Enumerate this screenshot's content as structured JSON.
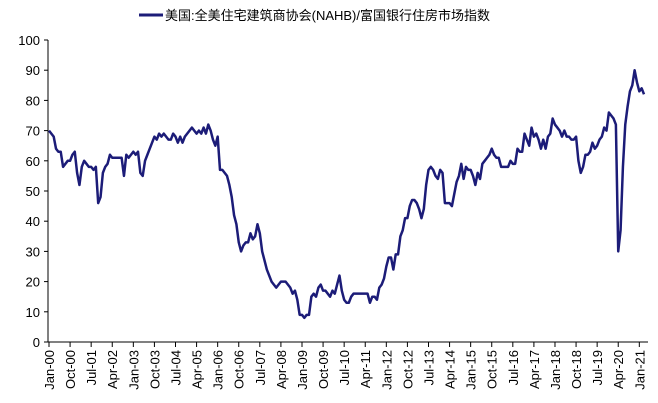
{
  "chart_data": {
    "type": "line",
    "categories": [
      "Jan-00",
      null,
      null,
      null,
      null,
      null,
      null,
      null,
      null,
      "Oct-00",
      null,
      null,
      null,
      null,
      null,
      null,
      null,
      null,
      "Jul-01",
      null,
      null,
      null,
      null,
      null,
      null,
      null,
      null,
      "Apr-02",
      null,
      null,
      null,
      null,
      null,
      null,
      null,
      null,
      "Jan-03",
      null,
      null,
      null,
      null,
      null,
      null,
      null,
      null,
      "Oct-03",
      null,
      null,
      null,
      null,
      null,
      null,
      null,
      null,
      "Jul-04",
      null,
      null,
      null,
      null,
      null,
      null,
      null,
      null,
      "Apr-05",
      null,
      null,
      null,
      null,
      null,
      null,
      null,
      null,
      "Jan-06",
      null,
      null,
      null,
      null,
      null,
      null,
      null,
      null,
      "Oct-06",
      null,
      null,
      null,
      null,
      null,
      null,
      null,
      null,
      "Jul-07",
      null,
      null,
      null,
      null,
      null,
      null,
      null,
      null,
      "Apr-08",
      null,
      null,
      null,
      null,
      null,
      null,
      null,
      null,
      "Jan-09",
      null,
      null,
      null,
      null,
      null,
      null,
      null,
      null,
      "Oct-09",
      null,
      null,
      null,
      null,
      null,
      null,
      null,
      null,
      "Jul-10",
      null,
      null,
      null,
      null,
      null,
      null,
      null,
      null,
      "Apr-11",
      null,
      null,
      null,
      null,
      null,
      null,
      null,
      null,
      "Jan-12",
      null,
      null,
      null,
      null,
      null,
      null,
      null,
      null,
      "Oct-12",
      null,
      null,
      null,
      null,
      null,
      null,
      null,
      null,
      "Jul-13",
      null,
      null,
      null,
      null,
      null,
      null,
      null,
      null,
      "Apr-14",
      null,
      null,
      null,
      null,
      null,
      null,
      null,
      null,
      "Jan-15",
      null,
      null,
      null,
      null,
      null,
      null,
      null,
      null,
      "Oct-15",
      null,
      null,
      null,
      null,
      null,
      null,
      null,
      null,
      "Jul-16",
      null,
      null,
      null,
      null,
      null,
      null,
      null,
      null,
      "Apr-17",
      null,
      null,
      null,
      null,
      null,
      null,
      null,
      null,
      "Jan-18",
      null,
      null,
      null,
      null,
      null,
      null,
      null,
      null,
      "Oct-18",
      null,
      null,
      null,
      null,
      null,
      null,
      null,
      null,
      "Jul-19",
      null,
      null,
      null,
      null,
      null,
      null,
      null,
      null,
      "Apr-20",
      null,
      null,
      null,
      null,
      null,
      null,
      null,
      null,
      "Jan-21",
      null,
      null
    ],
    "series": [
      {
        "name": "美国:全美住宅建筑商协会(NAHB)/富国银行住房市场指数",
        "color": "#1c1c78",
        "values": [
          70,
          69,
          68,
          64,
          63,
          63,
          58,
          59,
          60,
          60,
          62,
          63,
          56,
          52,
          58,
          60,
          59,
          58,
          58,
          57,
          58,
          46,
          48,
          56,
          58,
          59,
          62,
          61,
          61,
          61,
          61,
          61,
          55,
          62,
          61,
          62,
          63,
          62,
          63,
          56,
          55,
          60,
          62,
          64,
          66,
          68,
          67,
          69,
          68,
          69,
          68,
          67,
          67,
          69,
          68,
          66,
          68,
          66,
          68,
          69,
          70,
          71,
          70,
          69,
          70,
          69,
          71,
          69,
          72,
          70,
          67,
          65,
          68,
          57,
          57,
          56,
          55,
          52,
          48,
          42,
          39,
          33,
          30,
          32,
          33,
          33,
          36,
          34,
          35,
          39,
          36,
          30,
          27,
          24,
          22,
          20,
          19,
          18,
          19,
          20,
          20,
          20,
          19,
          18,
          16,
          17,
          14,
          9,
          9,
          8,
          9,
          9,
          15,
          16,
          15,
          18,
          19,
          17,
          17,
          16,
          15,
          17,
          16,
          19,
          22,
          17,
          14,
          13,
          13,
          15,
          16,
          16,
          16,
          16,
          16,
          16,
          16,
          13,
          15,
          15,
          14,
          18,
          19,
          21,
          25,
          28,
          28,
          24,
          29,
          29,
          35,
          37,
          41,
          41,
          45,
          47,
          47,
          46,
          44,
          41,
          44,
          52,
          57,
          58,
          57,
          55,
          54,
          57,
          56,
          46,
          46,
          46,
          45,
          49,
          53,
          55,
          59,
          54,
          58,
          57,
          57,
          55,
          52,
          56,
          54,
          59,
          60,
          61,
          62,
          64,
          62,
          61,
          61,
          58,
          58,
          58,
          58,
          60,
          59,
          59,
          64,
          63,
          63,
          69,
          67,
          65,
          71,
          68,
          69,
          67,
          64,
          67,
          64,
          68,
          69,
          74,
          72,
          71,
          70,
          68,
          70,
          68,
          68,
          67,
          67,
          68,
          60,
          56,
          58,
          62,
          62,
          63,
          66,
          64,
          65,
          67,
          68,
          71,
          70,
          76,
          75,
          74,
          72,
          30,
          37,
          58,
          72,
          78,
          83,
          85,
          90,
          86,
          83,
          84,
          82
        ]
      }
    ],
    "ylim": [
      0,
      100
    ],
    "yticks": [
      0,
      10,
      20,
      30,
      40,
      50,
      60,
      70,
      80,
      90,
      100
    ],
    "grid": false,
    "legend": "top"
  }
}
